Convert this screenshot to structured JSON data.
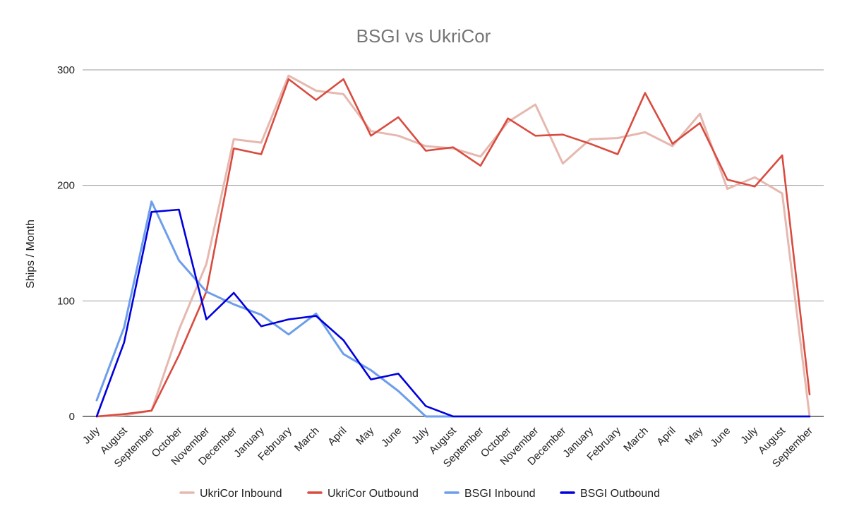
{
  "chart_data": {
    "type": "line",
    "title": "BSGI vs UkriCor",
    "xlabel": "",
    "ylabel": "Ships / Month",
    "ylim": [
      0,
      300
    ],
    "yticks": [
      0,
      100,
      200,
      300
    ],
    "categories": [
      "July",
      "August",
      "September",
      "October",
      "November",
      "December",
      "January",
      "February",
      "March",
      "April",
      "May",
      "June",
      "July",
      "August",
      "September",
      "October",
      "November",
      "December",
      "January",
      "February",
      "March",
      "April",
      "May",
      "June",
      "July",
      "August",
      "September"
    ],
    "legend_position": "bottom",
    "grid": true,
    "series": [
      {
        "name": "UkriCor Inbound",
        "color": "#e6b8af",
        "values": [
          0,
          1,
          5,
          75,
          132,
          240,
          237,
          295,
          282,
          279,
          247,
          243,
          234,
          232,
          225,
          255,
          270,
          219,
          240,
          241,
          246,
          234,
          262,
          197,
          207,
          193,
          0
        ]
      },
      {
        "name": "UkriCor Outbound",
        "color": "#d94b3f",
        "values": [
          0,
          2,
          5,
          53,
          108,
          232,
          227,
          292,
          274,
          292,
          243,
          259,
          230,
          233,
          217,
          258,
          243,
          244,
          236,
          227,
          280,
          236,
          254,
          205,
          199,
          226,
          19
        ]
      },
      {
        "name": "BSGI Inbound",
        "color": "#6d9eeb",
        "values": [
          14,
          77,
          186,
          135,
          108,
          97,
          88,
          71,
          89,
          54,
          40,
          22,
          0,
          0,
          0,
          0,
          0,
          0,
          0,
          0,
          0,
          0,
          0,
          0,
          0,
          0,
          0
        ]
      },
      {
        "name": "BSGI Outbound",
        "color": "#0000dd",
        "values": [
          0,
          64,
          177,
          179,
          84,
          107,
          78,
          84,
          87,
          66,
          32,
          37,
          9,
          0,
          0,
          0,
          0,
          0,
          0,
          0,
          0,
          0,
          0,
          0,
          0,
          0,
          0
        ]
      }
    ]
  }
}
